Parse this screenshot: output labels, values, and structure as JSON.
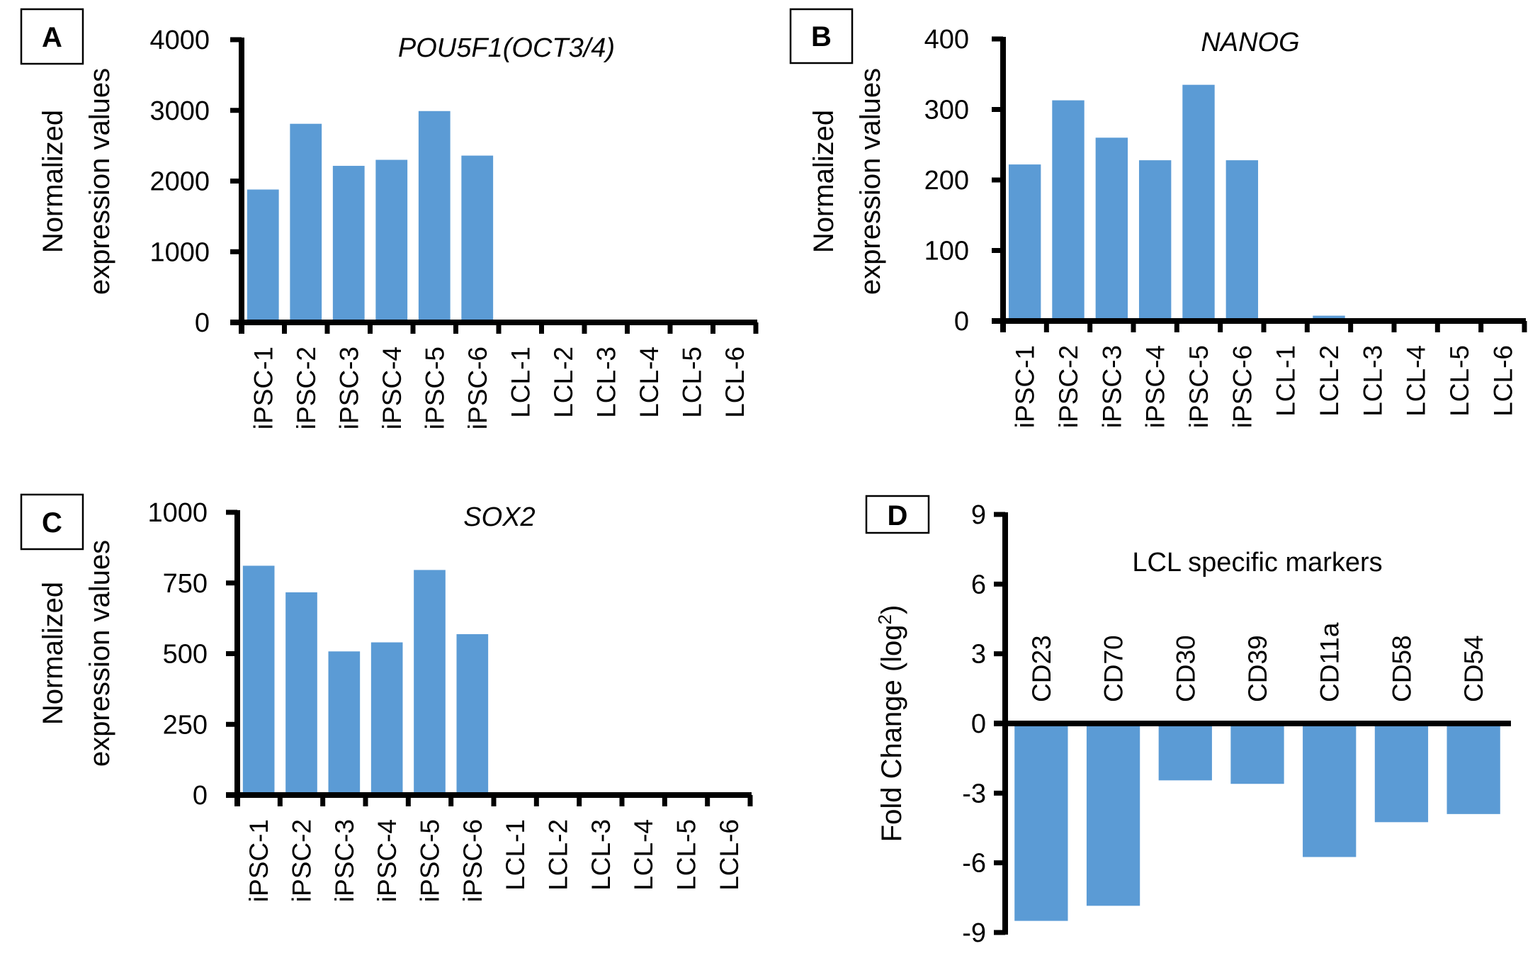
{
  "figure": {
    "bar_color": "#5b9bd5",
    "axis_color": "#000000"
  },
  "chart_data": [
    {
      "panel": "A",
      "type": "bar",
      "title": "POU5F1(OCT3/4)",
      "title_italic": true,
      "ylabel": [
        "Normalized",
        "expression values"
      ],
      "xlabel": "",
      "categories": [
        "iPSC-1",
        "iPSC-2",
        "iPSC-3",
        "iPSC-4",
        "iPSC-5",
        "iPSC-6",
        "LCL-1",
        "LCL-2",
        "LCL-3",
        "LCL-4",
        "LCL-5",
        "LCL-6"
      ],
      "values": [
        1880,
        2810,
        2215,
        2300,
        2990,
        2360,
        0,
        0,
        0,
        0,
        0,
        0
      ],
      "ylim": [
        0,
        4000
      ],
      "yticks": [
        0,
        1000,
        2000,
        3000,
        4000
      ],
      "ytick_labels": [
        "0",
        "1000",
        "2000",
        "3000",
        "4000"
      ],
      "grid": false,
      "legend": "none"
    },
    {
      "panel": "B",
      "type": "bar",
      "title": "NANOG",
      "title_italic": true,
      "ylabel": [
        "Normalized",
        "expression values"
      ],
      "xlabel": "",
      "categories": [
        "iPSC-1",
        "iPSC-2",
        "iPSC-3",
        "iPSC-4",
        "iPSC-5",
        "iPSC-6",
        "LCL-1",
        "LCL-2",
        "LCL-3",
        "LCL-4",
        "LCL-5",
        "LCL-6"
      ],
      "values": [
        222,
        313,
        260,
        228,
        335,
        228,
        0.5,
        7.5,
        1,
        2,
        1,
        3
      ],
      "ylim": [
        0,
        400
      ],
      "yticks": [
        0,
        100,
        200,
        300,
        400
      ],
      "ytick_labels": [
        "0",
        "100",
        "200",
        "300",
        "400"
      ],
      "grid": false,
      "legend": "none"
    },
    {
      "panel": "C",
      "type": "bar",
      "title": "SOX2",
      "title_italic": true,
      "ylabel": [
        "Normalized",
        "expression values"
      ],
      "xlabel": "",
      "categories": [
        "iPSC-1",
        "iPSC-2",
        "iPSC-3",
        "iPSC-4",
        "iPSC-5",
        "iPSC-6",
        "LCL-1",
        "LCL-2",
        "LCL-3",
        "LCL-4",
        "LCL-5",
        "LCL-6"
      ],
      "values": [
        811,
        717,
        508,
        540,
        796,
        569,
        0,
        0,
        0,
        0,
        0,
        0
      ],
      "ylim": [
        0,
        1000
      ],
      "yticks": [
        0,
        250,
        500,
        750,
        1000
      ],
      "ytick_labels": [
        "0",
        "250",
        "500",
        "750",
        "1000"
      ],
      "grid": false,
      "legend": "none"
    },
    {
      "panel": "D",
      "type": "bar",
      "title": "LCL specific markers",
      "title_italic": false,
      "ylabel": [
        "Fold Change (log",
        "2",
        ")"
      ],
      "xlabel": "",
      "categories": [
        "CD23",
        "CD70",
        "CD30",
        "CD39",
        "CD11a",
        "CD58",
        "CD54"
      ],
      "values": [
        -8.5,
        -7.85,
        -2.45,
        -2.6,
        -5.75,
        -4.25,
        -3.9
      ],
      "ylim": [
        -9,
        9
      ],
      "yticks": [
        -9,
        -6,
        -3,
        0,
        3,
        6,
        9
      ],
      "ytick_labels": [
        "-9",
        "-6",
        "-3",
        "0",
        "3",
        "6",
        "9"
      ],
      "grid": false,
      "legend": "none"
    }
  ]
}
